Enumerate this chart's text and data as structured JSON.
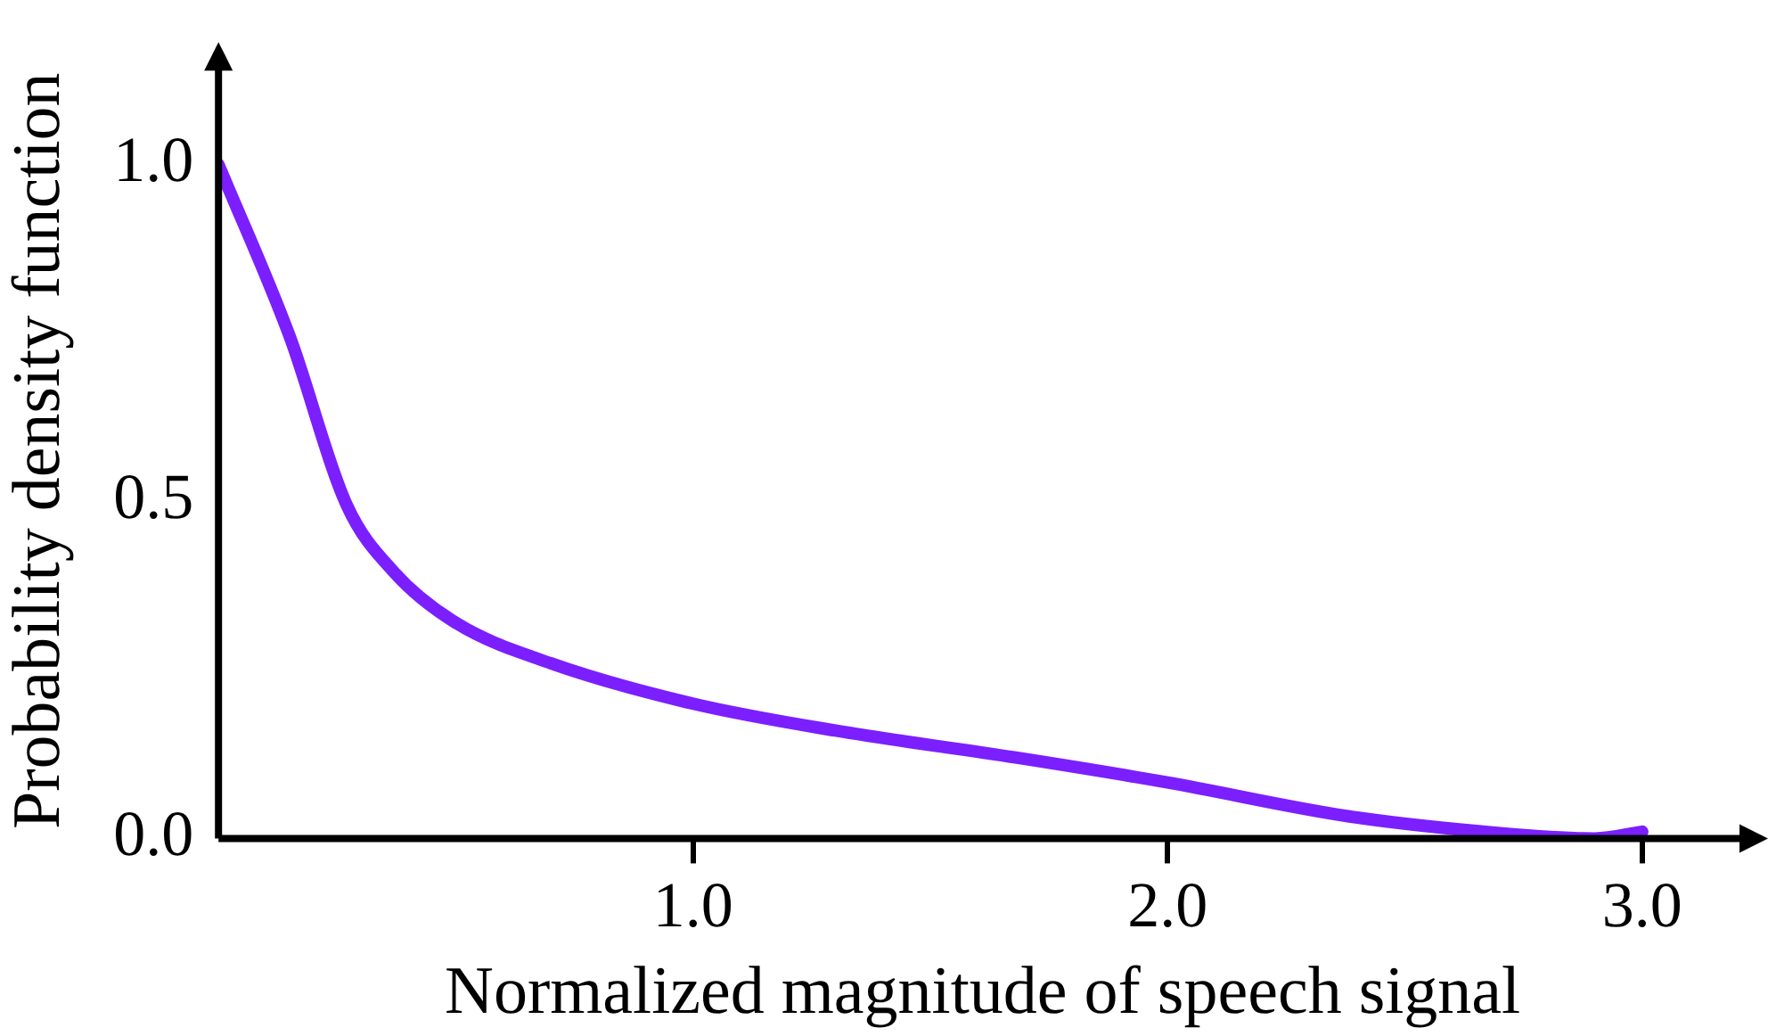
{
  "chart_data": {
    "type": "line",
    "xlabel": "Normalized magnitude of speech signal",
    "ylabel": "Probability density function",
    "x": [
      0,
      0.15,
      0.27,
      0.37,
      0.5,
      0.7,
      1.0,
      1.3,
      1.68,
      2.0,
      2.38,
      2.7,
      2.9,
      3.0
    ],
    "series": [
      {
        "color": "#7b1fff",
        "values": [
          1.0,
          0.745,
          0.495,
          0.395,
          0.32,
          0.26,
          0.2,
          0.16,
          0.12,
          0.083,
          0.033,
          0.008,
          0.0,
          0.01
        ]
      }
    ],
    "xlim": [
      0,
      3.22
    ],
    "ylim": [
      0,
      1.15
    ],
    "xticks": [
      {
        "value": 1,
        "label": "1.0"
      },
      {
        "value": 2,
        "label": "2.0"
      },
      {
        "value": 3,
        "label": "3.0"
      }
    ],
    "yticks": [
      {
        "value": 0,
        "label": "0.0"
      },
      {
        "value": 0.5,
        "label": "0.5"
      },
      {
        "value": 1,
        "label": "1.0"
      }
    ],
    "grid": false,
    "legend": false,
    "marker": "none",
    "line_style": "solid"
  }
}
